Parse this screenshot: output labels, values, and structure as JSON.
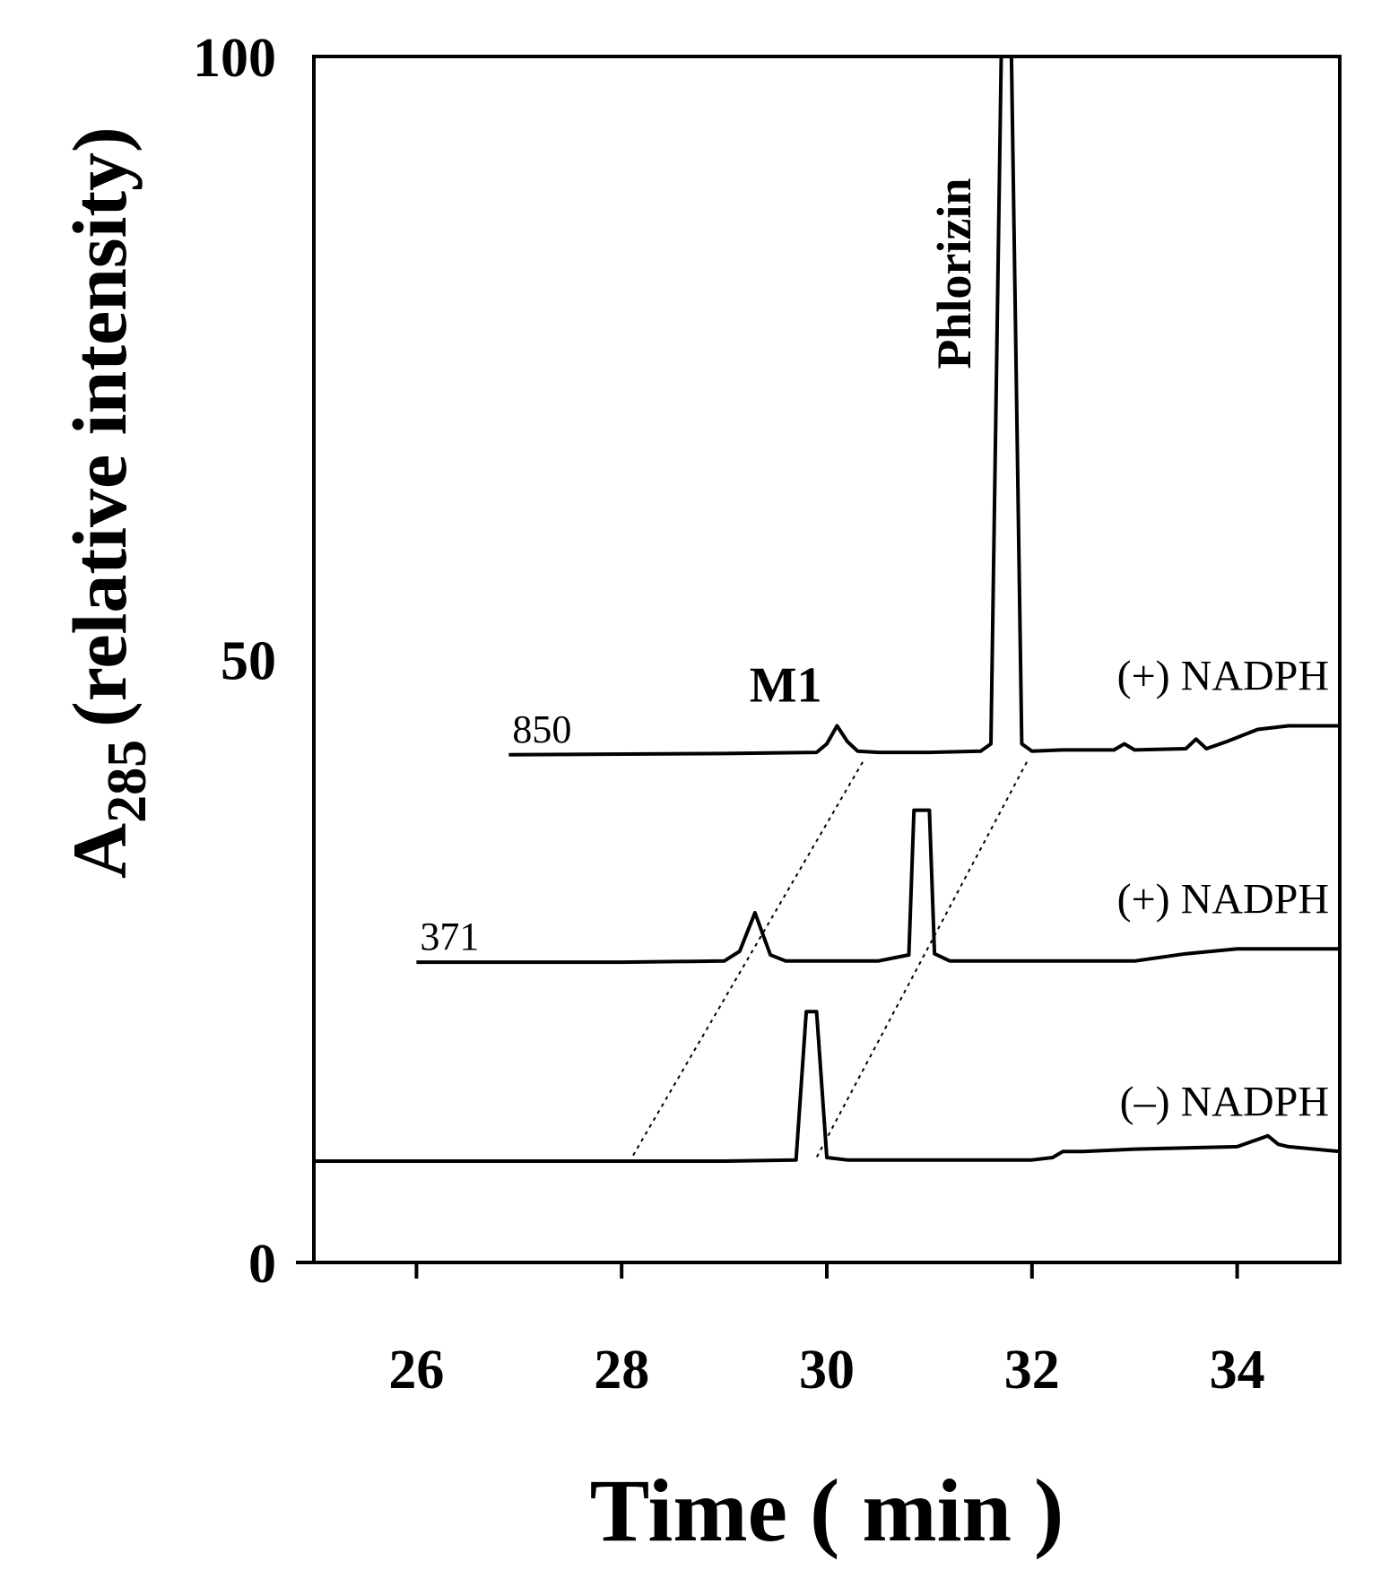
{
  "chart_data": {
    "type": "line",
    "title": "",
    "ylabel_main": "A",
    "ylabel_sub": "285",
    "ylabel_rest": "(relative intensity)",
    "xlabel": "Time ( min )",
    "xlim": [
      25,
      35
    ],
    "ylim": [
      0,
      100
    ],
    "x_ticks": [
      26,
      28,
      30,
      32,
      34
    ],
    "x_tick_labels": [
      "26",
      "28",
      "30",
      "32",
      "34"
    ],
    "y_ticks": [
      0,
      50,
      100
    ],
    "y_tick_labels": [
      "0",
      "50",
      "100"
    ],
    "grid": false,
    "series": [
      {
        "name": "(+) NADPH",
        "start_label": "850",
        "x": [
          26.9,
          29.0,
          29.9,
          30.0,
          30.1,
          30.2,
          30.3,
          30.5,
          31.0,
          31.5,
          31.6,
          31.7,
          31.8,
          31.9,
          32.0,
          32.3,
          32.8,
          32.9,
          33.0,
          33.5,
          33.6,
          33.7,
          33.9,
          34.2,
          34.5,
          35.0
        ],
        "y": [
          42.1,
          42.2,
          42.3,
          43.0,
          44.5,
          43.2,
          42.4,
          42.3,
          42.3,
          42.4,
          43.0,
          100,
          100,
          43.0,
          42.4,
          42.5,
          42.5,
          43.0,
          42.5,
          42.6,
          43.4,
          42.6,
          43.2,
          44.2,
          44.5,
          44.5
        ]
      },
      {
        "name": "(+) NADPH",
        "start_label": "371",
        "x": [
          26.0,
          28.0,
          29.0,
          29.15,
          29.3,
          29.45,
          29.6,
          30.0,
          30.5,
          30.8,
          30.85,
          31.0,
          31.05,
          31.2,
          32.0,
          33.0,
          33.5,
          34.0,
          35.0
        ],
        "y": [
          24.9,
          24.9,
          25.0,
          25.8,
          29.0,
          25.5,
          25.0,
          25.0,
          25.0,
          25.5,
          37.5,
          37.5,
          25.6,
          25.0,
          25.0,
          25.0,
          25.6,
          26.0,
          26.0
        ]
      },
      {
        "name": "(–) NADPH",
        "start_label": "",
        "x": [
          25.0,
          27.0,
          29.0,
          29.7,
          29.8,
          29.9,
          30.0,
          30.2,
          31.0,
          32.0,
          32.2,
          32.3,
          32.5,
          33.0,
          34.0,
          34.3,
          34.4,
          34.5,
          35.0
        ],
        "y": [
          8.4,
          8.4,
          8.4,
          8.5,
          20.8,
          20.8,
          8.7,
          8.5,
          8.5,
          8.5,
          8.7,
          9.2,
          9.2,
          9.4,
          9.6,
          10.5,
          9.8,
          9.6,
          9.2
        ]
      }
    ],
    "annotations": [
      {
        "text": "M1",
        "x": 29.6,
        "y": 46.5
      },
      {
        "text": "Phlorizin",
        "x": 31.4,
        "y": 82
      }
    ],
    "guide_lines": [
      {
        "style": "dotted",
        "x": [
          30.35,
          28.1
        ],
        "y": [
          41.5,
          8.7
        ]
      },
      {
        "style": "dotted",
        "x": [
          31.95,
          29.9
        ],
        "y": [
          41.5,
          8.7
        ]
      }
    ]
  }
}
